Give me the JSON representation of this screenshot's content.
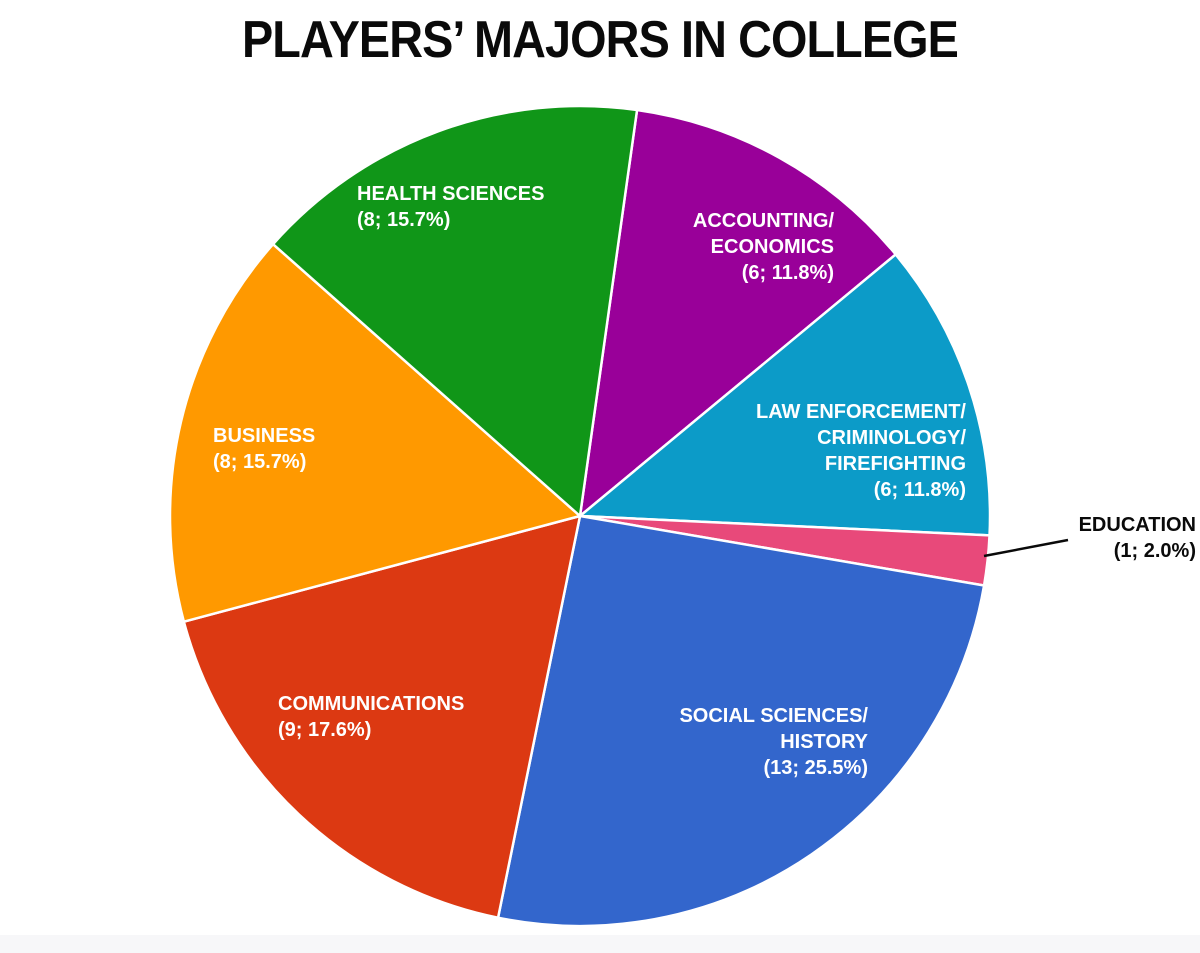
{
  "chart_data": {
    "type": "pie",
    "title": "PLAYERS’ MAJORS IN COLLEGE",
    "total": 51,
    "start_angle_deg": 8,
    "direction": "clockwise",
    "legend_position": "none",
    "slice_border_color": "#ffffff",
    "slices": [
      {
        "key": "accounting-economics",
        "label": "ACCOUNTING/ECONOMICS",
        "count": 6,
        "pct": 11.8,
        "color": "#990099"
      },
      {
        "key": "law-enforcement-criminology-firefighting",
        "label": "LAW ENFORCEMENT/CRIMINOLOGY/FIREFIGHTING",
        "count": 6,
        "pct": 11.8,
        "color": "#0c9bc8"
      },
      {
        "key": "education",
        "label": "EDUCATION",
        "count": 1,
        "pct": 2.0,
        "color": "#e8497a"
      },
      {
        "key": "social-sciences-history",
        "label": "SOCIAL SCIENCES/HISTORY",
        "count": 13,
        "pct": 25.5,
        "color": "#3366cc"
      },
      {
        "key": "communications",
        "label": "COMMUNICATIONS",
        "count": 9,
        "pct": 17.6,
        "color": "#dc3912"
      },
      {
        "key": "business",
        "label": "BUSINESS",
        "count": 8,
        "pct": 15.7,
        "color": "#ff9900"
      },
      {
        "key": "health-sciences",
        "label": "HEALTH SCIENCES",
        "count": 8,
        "pct": 15.7,
        "color": "#109618"
      }
    ]
  },
  "labels": {
    "health": {
      "line1": "HEALTH SCIENCES",
      "line2": "(8; 15.7%)"
    },
    "accounting": {
      "line1": "ACCOUNTING/",
      "line2": "ECONOMICS",
      "line3": "(6; 11.8%)"
    },
    "law": {
      "line1": "LAW ENFORCEMENT/",
      "line2": "CRIMINOLOGY/",
      "line3": "FIREFIGHTING",
      "line4": "(6; 11.8%)"
    },
    "education": {
      "line1": "EDUCATION",
      "line2": "(1; 2.0%)"
    },
    "social": {
      "line1": "SOCIAL SCIENCES/",
      "line2": "HISTORY",
      "line3": "(13; 25.5%)"
    },
    "communications": {
      "line1": "COMMUNICATIONS",
      "line2": "(9; 17.6%)"
    },
    "business": {
      "line1": "BUSINESS",
      "line2": "(8; 15.7%)"
    }
  }
}
